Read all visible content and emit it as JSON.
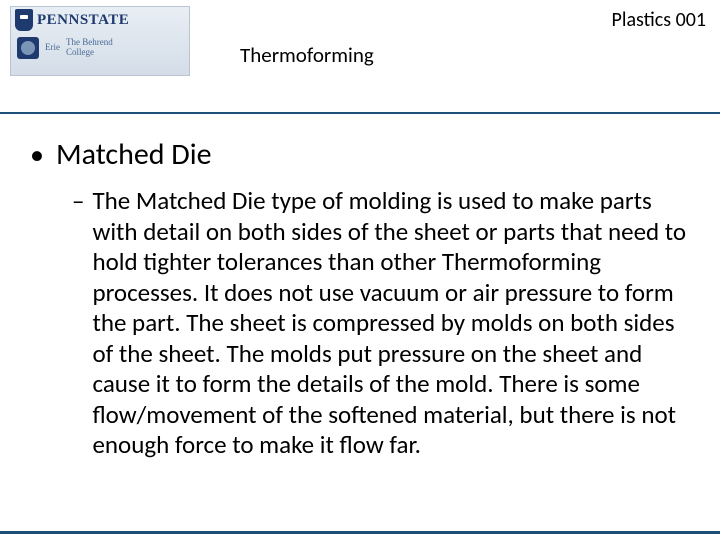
{
  "header": {
    "logo": {
      "university": "PENNSTATE",
      "campus": "Erie",
      "college": "The Behrend\nCollege"
    },
    "course_code": "Plastics 001",
    "slide_title": "Thermoforming"
  },
  "content": {
    "bullet_main": "Matched Die",
    "bullet_sub": "The Matched Die type of molding is used to make parts with detail on both sides of the sheet or parts that need to hold tighter tolerances than other Thermoforming processes.  It does not use vacuum or air pressure to form the part.  The sheet is compressed by molds on both sides of the sheet.  The molds put pressure on the sheet and cause it to form the details of the mold.  There is some flow/movement of the softened material, but there is not enough force to make it flow far."
  },
  "colors": {
    "divider": "#1f4e79",
    "text": "#000000",
    "logo_primary": "#1e3a6e"
  }
}
